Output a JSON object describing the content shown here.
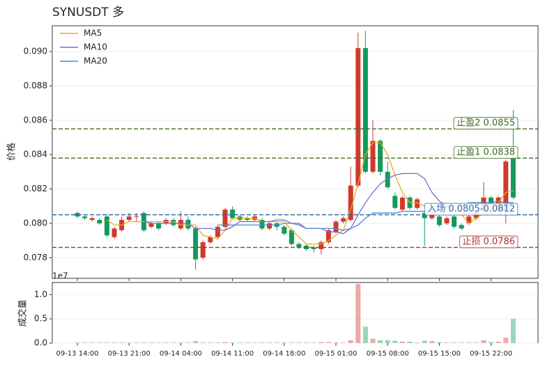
{
  "chart_data": {
    "type": "candlestick",
    "title": "SYNUSDT  多",
    "ylabel": "价格",
    "volume_ylabel": "成交量",
    "volume_scale_label": "1e7",
    "categories": [
      "09-13 14:00",
      "09-13 15:00",
      "09-13 16:00",
      "09-13 17:00",
      "09-13 18:00",
      "09-13 19:00",
      "09-13 20:00",
      "09-13 21:00",
      "09-13 22:00",
      "09-13 23:00",
      "09-14 00:00",
      "09-14 01:00",
      "09-14 02:00",
      "09-14 03:00",
      "09-14 04:00",
      "09-14 05:00",
      "09-14 06:00",
      "09-14 07:00",
      "09-14 08:00",
      "09-14 09:00",
      "09-14 10:00",
      "09-14 11:00",
      "09-14 12:00",
      "09-14 13:00",
      "09-14 14:00",
      "09-14 15:00",
      "09-14 16:00",
      "09-14 17:00",
      "09-14 18:00",
      "09-14 19:00",
      "09-14 20:00",
      "09-14 21:00",
      "09-14 22:00",
      "09-14 23:00",
      "09-15 00:00",
      "09-15 01:00",
      "09-15 02:00",
      "09-15 03:00",
      "09-15 04:00",
      "09-15 05:00",
      "09-15 06:00",
      "09-15 07:00",
      "09-15 08:00",
      "09-15 09:00",
      "09-15 10:00",
      "09-15 11:00",
      "09-15 12:00",
      "09-15 13:00",
      "09-15 14:00",
      "09-15 15:00",
      "09-15 16:00",
      "09-15 17:00",
      "09-15 18:00",
      "09-15 19:00",
      "09-15 20:00",
      "09-15 21:00",
      "09-15 22:00",
      "09-15 23:00",
      "09-16 00:00",
      "09-16 01:00"
    ],
    "open": [
      0.0806,
      0.0804,
      0.0802,
      0.0802,
      0.0804,
      0.0792,
      0.0796,
      0.0802,
      0.0804,
      0.0806,
      0.0798,
      0.08,
      0.08,
      0.0802,
      0.0797,
      0.0802,
      0.0797,
      0.078,
      0.0789,
      0.0792,
      0.0798,
      0.0808,
      0.0804,
      0.0803,
      0.0802,
      0.0802,
      0.0797,
      0.08,
      0.0798,
      0.0796,
      0.0788,
      0.0787,
      0.0786,
      0.0785,
      0.0789,
      0.0795,
      0.0801,
      0.0802,
      0.0822,
      0.0902,
      0.083,
      0.0848,
      0.083,
      0.0816,
      0.0808,
      0.0815,
      0.0809,
      0.0806,
      0.0803,
      0.0804,
      0.08,
      0.0804,
      0.0799,
      0.08,
      0.0803,
      0.0807,
      0.0815,
      0.0808,
      0.0808,
      0.0838
    ],
    "high": [
      0.0807,
      0.0805,
      0.0804,
      0.0803,
      0.0805,
      0.0798,
      0.0804,
      0.0806,
      0.0806,
      0.0807,
      0.0801,
      0.0801,
      0.0803,
      0.0803,
      0.0807,
      0.0804,
      0.0798,
      0.079,
      0.0793,
      0.0799,
      0.0809,
      0.081,
      0.0805,
      0.0804,
      0.0805,
      0.0803,
      0.0801,
      0.0801,
      0.0799,
      0.0797,
      0.0789,
      0.0788,
      0.0787,
      0.079,
      0.0797,
      0.0802,
      0.0804,
      0.0833,
      0.0911,
      0.0912,
      0.086,
      0.0849,
      0.0836,
      0.0818,
      0.0816,
      0.0816,
      0.0815,
      0.0807,
      0.0807,
      0.0805,
      0.0804,
      0.0805,
      0.08,
      0.0805,
      0.0808,
      0.0824,
      0.0816,
      0.0816,
      0.0837,
      0.0866
    ],
    "low": [
      0.0803,
      0.0802,
      0.0801,
      0.0799,
      0.0792,
      0.0791,
      0.0795,
      0.0801,
      0.0801,
      0.0795,
      0.0797,
      0.0796,
      0.0799,
      0.0798,
      0.0796,
      0.0796,
      0.0773,
      0.0779,
      0.0788,
      0.0791,
      0.0797,
      0.0802,
      0.0801,
      0.0801,
      0.0801,
      0.0796,
      0.0796,
      0.0796,
      0.0793,
      0.0787,
      0.0785,
      0.0784,
      0.0783,
      0.0782,
      0.0788,
      0.0794,
      0.08,
      0.0801,
      0.0821,
      0.0829,
      0.0829,
      0.0828,
      0.082,
      0.0808,
      0.0807,
      0.0808,
      0.0808,
      0.0787,
      0.0802,
      0.0798,
      0.0799,
      0.0797,
      0.0796,
      0.0799,
      0.0802,
      0.0806,
      0.081,
      0.0807,
      0.08,
      0.0814
    ],
    "close": [
      0.0804,
      0.0803,
      0.0803,
      0.08,
      0.0793,
      0.0797,
      0.0802,
      0.0804,
      0.0804,
      0.0796,
      0.08,
      0.0797,
      0.0802,
      0.0799,
      0.0802,
      0.0797,
      0.0779,
      0.0789,
      0.0792,
      0.0798,
      0.0808,
      0.0803,
      0.0802,
      0.0802,
      0.0804,
      0.0797,
      0.08,
      0.0798,
      0.0794,
      0.0788,
      0.0786,
      0.0785,
      0.0785,
      0.0789,
      0.0796,
      0.0801,
      0.0803,
      0.0822,
      0.0902,
      0.083,
      0.0848,
      0.083,
      0.0821,
      0.0809,
      0.0815,
      0.0809,
      0.0814,
      0.0803,
      0.0806,
      0.0799,
      0.0803,
      0.0798,
      0.0797,
      0.0804,
      0.0807,
      0.0815,
      0.0811,
      0.0815,
      0.0836,
      0.0815
    ],
    "volume": [
      0.01,
      0.01,
      0.01,
      0.01,
      0.01,
      0.01,
      0.01,
      0.01,
      0.01,
      0.01,
      0.01,
      0.01,
      0.01,
      0.01,
      0.01,
      0.01,
      0.04,
      0.01,
      0.01,
      0.01,
      0.02,
      0.01,
      0.01,
      0.01,
      0.01,
      0.01,
      0.01,
      0.01,
      0.01,
      0.01,
      0.01,
      0.01,
      0.01,
      0.02,
      0.02,
      0.01,
      0.01,
      0.06,
      1.22,
      0.34,
      0.09,
      0.06,
      0.06,
      0.05,
      0.03,
      0.03,
      0.01,
      0.05,
      0.04,
      0.02,
      0.01,
      0.01,
      0.01,
      0.01,
      0.01,
      0.06,
      0.02,
      0.03,
      0.11,
      0.5
    ],
    "up_color": "#d03a2a",
    "down_color": "#129a5e",
    "series": [
      {
        "name": "MA5",
        "color": "#e6ac1e",
        "values": [
          null,
          null,
          null,
          null,
          0.0802,
          0.0799,
          0.0799,
          0.0801,
          0.0801,
          0.0801,
          0.0801,
          0.0801,
          0.0801,
          0.0801,
          0.0799,
          0.0799,
          0.0799,
          0.0793,
          0.0792,
          0.0791,
          0.0796,
          0.0803,
          0.0803,
          0.0803,
          0.0803,
          0.0801,
          0.0801,
          0.0801,
          0.0801,
          0.0796,
          0.0792,
          0.0788,
          0.0788,
          0.0788,
          0.079,
          0.0793,
          0.0796,
          0.0808,
          0.0823,
          0.084,
          0.0847,
          0.0847,
          0.084,
          0.0828,
          0.0818,
          0.0812,
          0.0812,
          0.081,
          0.0808,
          0.0805,
          0.0805,
          0.0805,
          0.0805,
          0.08,
          0.0803,
          0.0806,
          0.0808,
          0.0812,
          0.0818,
          0.0819
        ]
      },
      {
        "name": "MA10",
        "color": "#7b68c8",
        "values": [
          null,
          null,
          null,
          null,
          null,
          null,
          null,
          null,
          null,
          0.0801,
          0.08,
          0.08,
          0.08,
          0.08,
          0.08,
          0.08,
          0.0797,
          0.0797,
          0.0797,
          0.0796,
          0.0796,
          0.0798,
          0.0801,
          0.0801,
          0.0801,
          0.0801,
          0.0801,
          0.0802,
          0.0802,
          0.08,
          0.08,
          0.0797,
          0.0797,
          0.0797,
          0.0795,
          0.0795,
          0.0794,
          0.0797,
          0.0805,
          0.0812,
          0.0818,
          0.0823,
          0.0826,
          0.0828,
          0.0829,
          0.0829,
          0.0829,
          0.0826,
          0.0818,
          0.0813,
          0.081,
          0.0808,
          0.0806,
          0.0806,
          0.0806,
          0.0805,
          0.0806,
          0.0808,
          0.0808,
          0.0812
        ]
      },
      {
        "name": "MA20",
        "color": "#4a8ad4",
        "values": [
          null,
          null,
          null,
          null,
          null,
          null,
          null,
          null,
          null,
          null,
          null,
          null,
          null,
          null,
          null,
          null,
          null,
          null,
          null,
          0.0799,
          0.0799,
          0.0799,
          0.0799,
          0.0799,
          0.0799,
          0.0799,
          0.0799,
          0.0799,
          0.08,
          0.08,
          0.0799,
          0.0797,
          0.0797,
          0.0797,
          0.0797,
          0.0797,
          0.0796,
          0.0797,
          0.0799,
          0.0803,
          0.0806,
          0.0806,
          0.0806,
          0.0806,
          0.0807,
          0.0807,
          0.0807,
          0.0807,
          0.0808,
          0.081,
          0.081,
          0.081,
          0.081,
          0.0812,
          0.0812,
          0.0812,
          0.0812,
          0.0813,
          0.0812,
          0.0812
        ]
      }
    ],
    "levels": [
      {
        "label": "止盈2 0.0855",
        "value": 0.0855,
        "color": "#3d6b22"
      },
      {
        "label": "止盈1 0.0838",
        "value": 0.0838,
        "color": "#3d6b22"
      },
      {
        "label": "入场 0.0805-0.0812",
        "value": 0.0805,
        "color": "#2e6da4"
      },
      {
        "label": "止损 0.0786",
        "value": 0.0786,
        "color": "#a83232"
      }
    ],
    "ylim": [
      0.0768,
      0.0915
    ],
    "yticks": [
      0.078,
      {
        "value": 0.08,
        "label": "0.080"
      },
      0.082,
      0.084,
      0.086,
      0.088,
      {
        "value": 0.09,
        "label": "0.090"
      }
    ],
    "volume_ylim": [
      0,
      1.25
    ],
    "volume_yticks": [
      {
        "value": 0,
        "label": "0.0"
      },
      {
        "value": 0.5,
        "label": "0.5"
      },
      {
        "value": 1,
        "label": "1.0"
      }
    ],
    "xticks": [
      "09-13 14:00",
      "09-13 21:00",
      "09-14 04:00",
      "09-14 11:00",
      "09-14 18:00",
      "09-15 01:00",
      "09-15 08:00",
      "09-15 15:00",
      "09-15 22:00"
    ],
    "grid": true,
    "legend": "upper left"
  }
}
